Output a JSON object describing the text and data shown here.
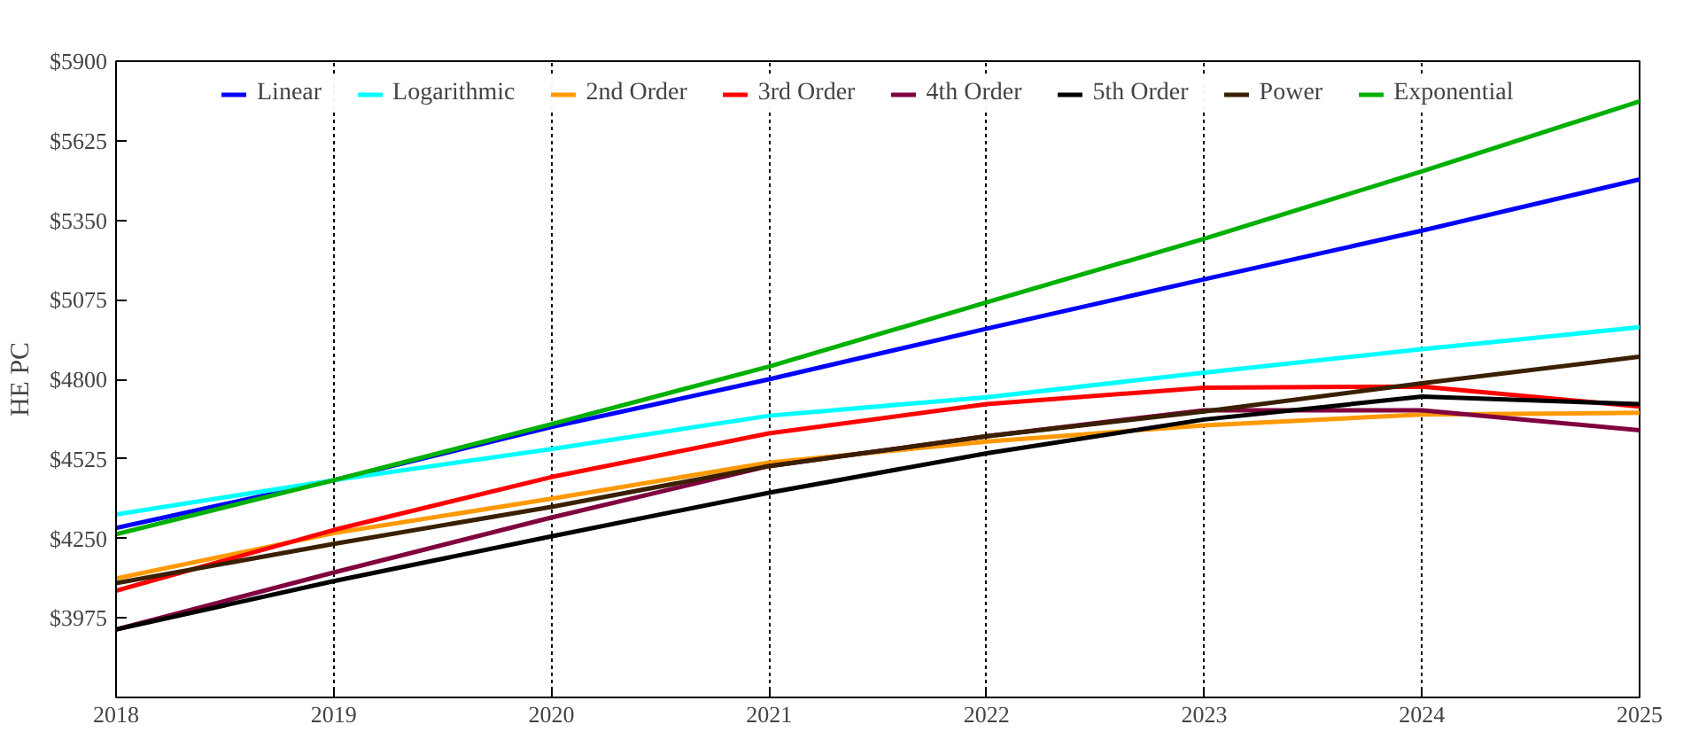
{
  "chart_data": {
    "type": "line",
    "ylabel": "HE PC",
    "x": [
      2018,
      2019,
      2020,
      2021,
      2022,
      2023,
      2024,
      2025
    ],
    "xlim": [
      2018,
      2025
    ],
    "xticks": [
      2018,
      2019,
      2020,
      2021,
      2022,
      2023,
      2024,
      2025
    ],
    "ylim": [
      3700,
      5900
    ],
    "yticks": [
      {
        "value": 3700,
        "label": null
      },
      {
        "value": 3975,
        "label": "$3975"
      },
      {
        "value": 4250,
        "label": "$4250"
      },
      {
        "value": 4525,
        "label": "$4525"
      },
      {
        "value": 4800,
        "label": "$4800"
      },
      {
        "value": 5075,
        "label": "$5075"
      },
      {
        "value": 5350,
        "label": "$5350"
      },
      {
        "value": 5625,
        "label": "$5625"
      },
      {
        "value": 5900,
        "label": "$5900"
      }
    ],
    "grid": "x",
    "legend": "top",
    "marker": "none",
    "line_style": "solid",
    "series": [
      {
        "name": "Linear",
        "color": "#0000ff",
        "values": [
          4286,
          4451,
          4635,
          4800,
          4975,
          5146,
          5314,
          5491
        ]
      },
      {
        "name": "Logarithmic",
        "color": "#00ffff",
        "values": [
          4333,
          4451,
          4559,
          4674,
          4738,
          4823,
          4904,
          4980
        ]
      },
      {
        "name": "2nd Order",
        "color": "#ff9900",
        "values": [
          4111,
          4268,
          4387,
          4512,
          4585,
          4641,
          4678,
          4684
        ]
      },
      {
        "name": "3rd Order",
        "color": "#ff0000",
        "values": [
          4069,
          4279,
          4462,
          4613,
          4714,
          4771,
          4775,
          4706
        ]
      },
      {
        "name": "4th Order",
        "color": "#800040",
        "values": [
          3935,
          4132,
          4322,
          4500,
          4603,
          4693,
          4693,
          4624
        ]
      },
      {
        "name": "5th Order",
        "color": "#000000",
        "values": [
          3935,
          4102,
          4257,
          4408,
          4544,
          4661,
          4740,
          4714
        ]
      },
      {
        "name": "Power",
        "color": "#3a2000",
        "values": [
          4095,
          4231,
          4359,
          4500,
          4603,
          4689,
          4786,
          4878
        ]
      },
      {
        "name": "Exponential",
        "color": "#00b000",
        "values": [
          4264,
          4451,
          4645,
          4844,
          5066,
          5286,
          5519,
          5761
        ]
      }
    ]
  }
}
